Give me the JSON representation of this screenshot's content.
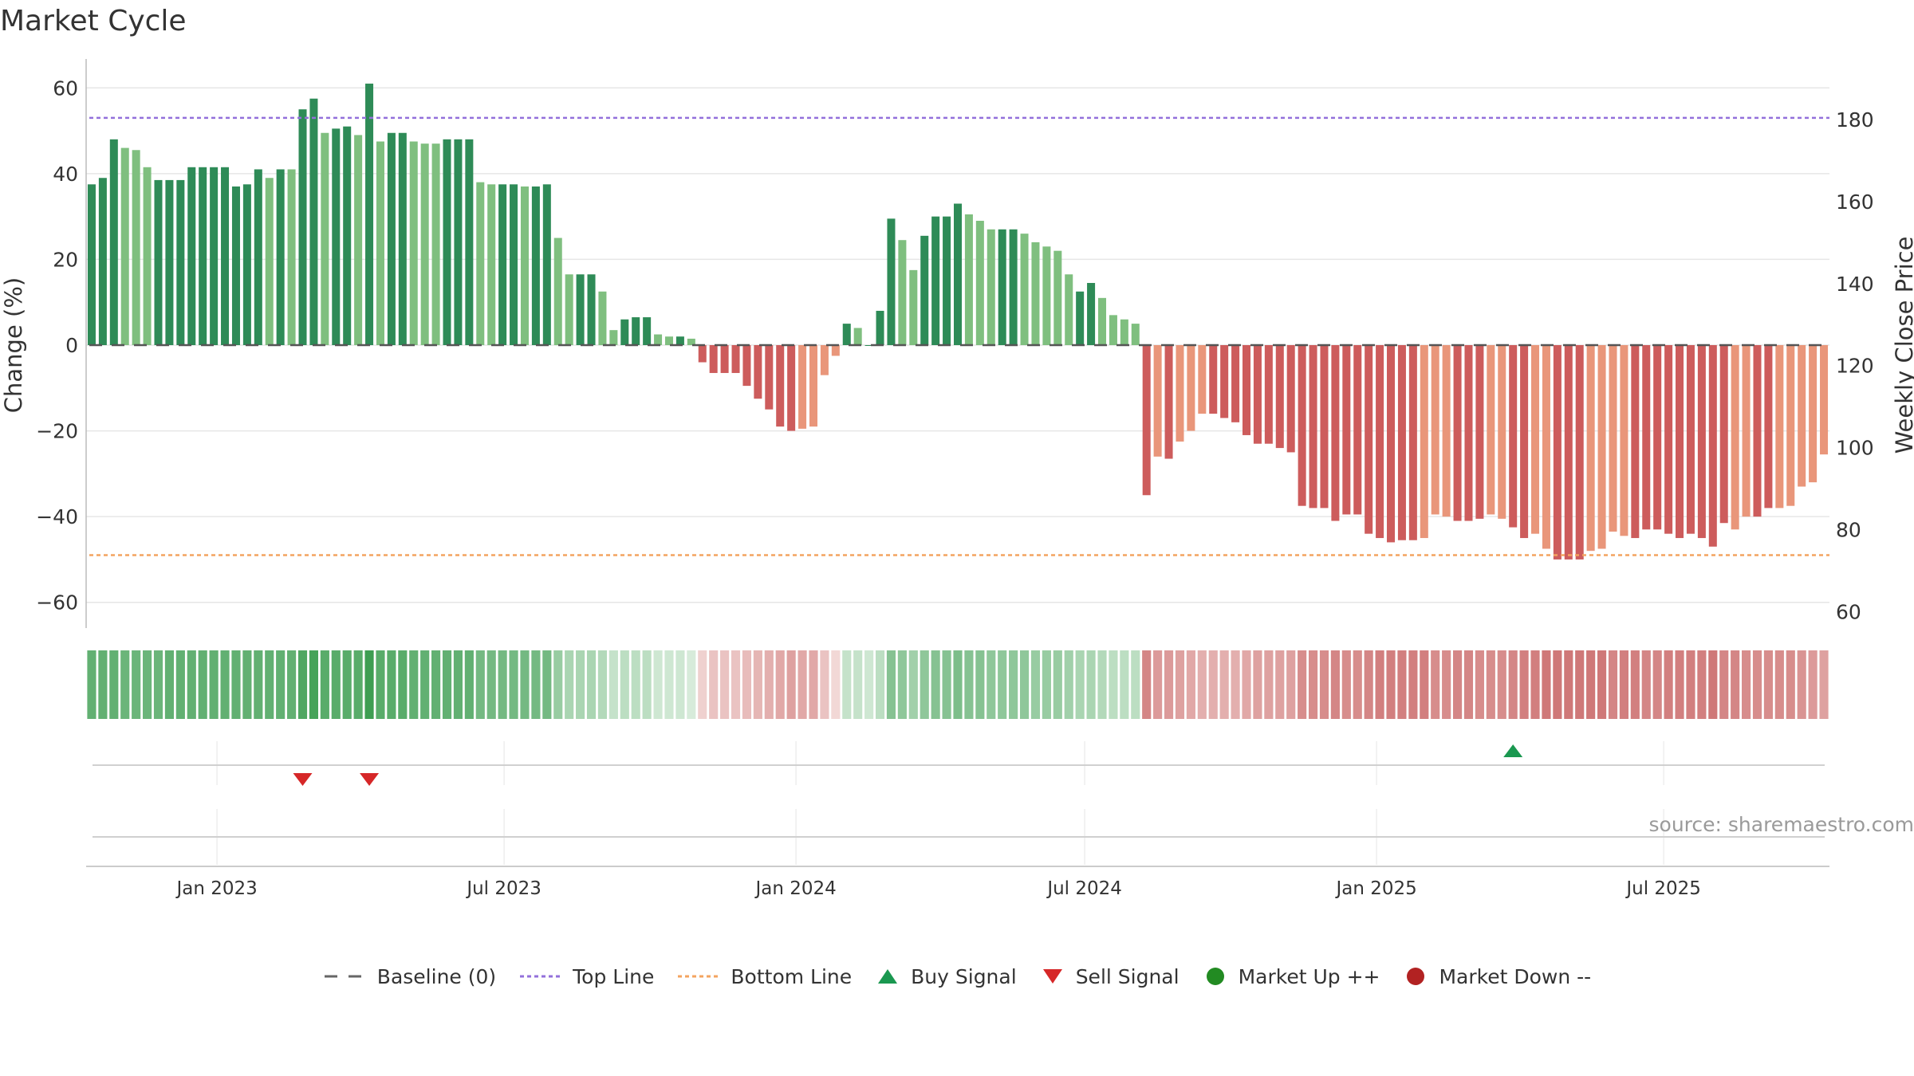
{
  "title": "Market Cycle",
  "source": "source: sharemaestro.com",
  "colors": {
    "up_dark": "#2e8b57",
    "up_light": "#7fbf7f",
    "down_dark": "#cd5c5c",
    "down_light": "#e9967a",
    "top_line": "#9370db",
    "bottom_line": "#f4a460",
    "baseline": "#555555",
    "buy": "#1a9850",
    "sell": "#d62728",
    "market_up": "#228b22",
    "market_down": "#b22222"
  },
  "legend": [
    {
      "label": "Baseline (0)",
      "icon": "dash-line",
      "color": "#666666"
    },
    {
      "label": "Top Line",
      "icon": "dotted-line",
      "color": "#9370db"
    },
    {
      "label": "Bottom Line",
      "icon": "dotted-line",
      "color": "#f4a460"
    },
    {
      "label": "Buy Signal",
      "icon": "triangle-up",
      "color": "#1a9850"
    },
    {
      "label": "Sell Signal",
      "icon": "triangle-down",
      "color": "#d62728"
    },
    {
      "label": "Market Up ++",
      "icon": "circle",
      "color": "#228b22"
    },
    {
      "label": "Market Down --",
      "icon": "circle",
      "color": "#b22222"
    }
  ],
  "chart_data": {
    "type": "bar",
    "x_start": "2022-10-14",
    "x_step_days": 7,
    "ylabel": "Change (%)",
    "ylabel_right": "Weekly Close Price",
    "ylim": [
      -66,
      66
    ],
    "yticks": [
      60,
      40,
      20,
      0,
      -20,
      -40,
      -60
    ],
    "ylim_right": [
      56,
      194
    ],
    "yticks_right": [
      180,
      160,
      140,
      120,
      100,
      80,
      60
    ],
    "top_line": 53,
    "bottom_line": -49,
    "baseline": 0,
    "xticks": [
      {
        "date": "2023-01-01",
        "label": "Jan 2023"
      },
      {
        "date": "2023-07-01",
        "label": "Jul 2023"
      },
      {
        "date": "2024-01-01",
        "label": "Jan 2024"
      },
      {
        "date": "2024-07-01",
        "label": "Jul 2024"
      },
      {
        "date": "2025-01-01",
        "label": "Jan 2025"
      },
      {
        "date": "2025-07-01",
        "label": "Jul 2025"
      }
    ],
    "values": [
      37.5,
      39,
      48,
      46,
      45.5,
      41.5,
      38.5,
      38.5,
      38.5,
      41.5,
      41.5,
      41.5,
      41.5,
      37,
      37.5,
      41,
      39,
      41,
      41,
      55,
      57.5,
      49.5,
      50.5,
      51,
      49,
      61,
      47.5,
      49.5,
      49.5,
      47.5,
      47,
      47,
      48,
      48,
      48,
      38,
      37.5,
      37.5,
      37.5,
      37,
      37,
      37.5,
      25,
      16.5,
      16.5,
      16.5,
      12.5,
      3.5,
      6,
      6.5,
      6.5,
      2.5,
      2,
      2,
      1.5,
      -4,
      -6.5,
      -6.5,
      -6.5,
      -9.5,
      -12.5,
      -15,
      -19,
      -20,
      -19.5,
      -19,
      -7,
      -2.5,
      5,
      4,
      0,
      8,
      29.5,
      24.5,
      17.5,
      25.5,
      30,
      30,
      33,
      30.5,
      29,
      27,
      27,
      27,
      26,
      24,
      23,
      22,
      16.5,
      12.5,
      14.5,
      11,
      7,
      6,
      5,
      -35,
      -26,
      -26.5,
      -22.5,
      -20,
      -16,
      -16,
      -17,
      -18,
      -21,
      -23,
      -23,
      -24,
      -25,
      -37.5,
      -38,
      -38,
      -41,
      -39.5,
      -39.5,
      -44,
      -45,
      -46,
      -45.5,
      -45.5,
      -45,
      -39.5,
      -40,
      -41,
      -41,
      -40.5,
      -39.5,
      -40.5,
      -42.5,
      -45,
      -44,
      -47.5,
      -50,
      -50,
      -50,
      -48,
      -47.5,
      -43.5,
      -44.5,
      -45,
      -43,
      -43,
      -44,
      -45,
      -44,
      -45,
      -47,
      -41.5,
      -43,
      -40,
      -40,
      -38,
      -38,
      -37.5,
      -33,
      -32,
      -25.5
    ],
    "shade": [
      1,
      1,
      1,
      0,
      0,
      0,
      1,
      1,
      1,
      1,
      1,
      1,
      1,
      1,
      1,
      1,
      0,
      1,
      0,
      1,
      1,
      0,
      1,
      1,
      0,
      1,
      0,
      1,
      1,
      0,
      0,
      0,
      1,
      1,
      1,
      0,
      0,
      1,
      1,
      0,
      1,
      1,
      0,
      0,
      1,
      1,
      0,
      0,
      1,
      1,
      1,
      0,
      0,
      1,
      0,
      1,
      1,
      1,
      1,
      1,
      1,
      1,
      1,
      1,
      0,
      0,
      0,
      0,
      1,
      0,
      1,
      1,
      1,
      0,
      0,
      1,
      1,
      1,
      1,
      0,
      0,
      0,
      1,
      1,
      0,
      0,
      0,
      0,
      0,
      1,
      1,
      0,
      0,
      0,
      0,
      1,
      0,
      1,
      0,
      0,
      0,
      1,
      1,
      1,
      1,
      1,
      1,
      1,
      1,
      1,
      1,
      1,
      1,
      1,
      1,
      1,
      1,
      1,
      1,
      1,
      0,
      0,
      0,
      1,
      1,
      1,
      0,
      0,
      1,
      1,
      0,
      0,
      1,
      1,
      1,
      0,
      0,
      0,
      0,
      1,
      1,
      1,
      1,
      1,
      1,
      1,
      1,
      1,
      0,
      0,
      1,
      1,
      0,
      0,
      0,
      0,
      0
    ],
    "regime_strip": {
      "description_colors": [
        "green",
        "red"
      ],
      "intensity": [
        0.8,
        0.8,
        0.8,
        0.75,
        0.75,
        0.75,
        0.75,
        0.8,
        0.8,
        0.8,
        0.8,
        0.8,
        0.8,
        0.8,
        0.8,
        0.8,
        0.8,
        0.8,
        0.8,
        0.9,
        0.95,
        0.85,
        0.85,
        0.85,
        0.85,
        1,
        0.85,
        0.85,
        0.85,
        0.8,
        0.8,
        0.8,
        0.8,
        0.8,
        0.8,
        0.7,
        0.7,
        0.7,
        0.7,
        0.7,
        0.7,
        0.7,
        0.5,
        0.4,
        0.4,
        0.4,
        0.35,
        0.25,
        0.3,
        0.3,
        0.3,
        0.2,
        0.2,
        0.2,
        0.15,
        0.2,
        0.3,
        0.3,
        0.3,
        0.35,
        0.4,
        0.45,
        0.5,
        0.55,
        0.5,
        0.5,
        0.3,
        0.15,
        0.25,
        0.25,
        0.2,
        0.3,
        0.6,
        0.55,
        0.45,
        0.55,
        0.6,
        0.6,
        0.65,
        0.6,
        0.6,
        0.55,
        0.55,
        0.55,
        0.55,
        0.5,
        0.5,
        0.5,
        0.45,
        0.4,
        0.4,
        0.35,
        0.3,
        0.3,
        0.3,
        0.75,
        0.6,
        0.6,
        0.55,
        0.5,
        0.45,
        0.45,
        0.45,
        0.45,
        0.5,
        0.55,
        0.55,
        0.55,
        0.55,
        0.7,
        0.7,
        0.7,
        0.75,
        0.7,
        0.7,
        0.75,
        0.8,
        0.8,
        0.8,
        0.8,
        0.8,
        0.7,
        0.7,
        0.75,
        0.75,
        0.7,
        0.7,
        0.7,
        0.75,
        0.8,
        0.8,
        0.85,
        0.85,
        0.85,
        0.85,
        0.85,
        0.85,
        0.75,
        0.8,
        0.8,
        0.75,
        0.75,
        0.8,
        0.8,
        0.8,
        0.8,
        0.85,
        0.75,
        0.75,
        0.7,
        0.7,
        0.7,
        0.7,
        0.7,
        0.65,
        0.6,
        0.55
      ]
    },
    "buy_signals": [
      {
        "index": 128
      }
    ],
    "sell_signals": [
      {
        "index": 19
      },
      {
        "index": 25
      }
    ],
    "market_up": [],
    "market_down": []
  }
}
